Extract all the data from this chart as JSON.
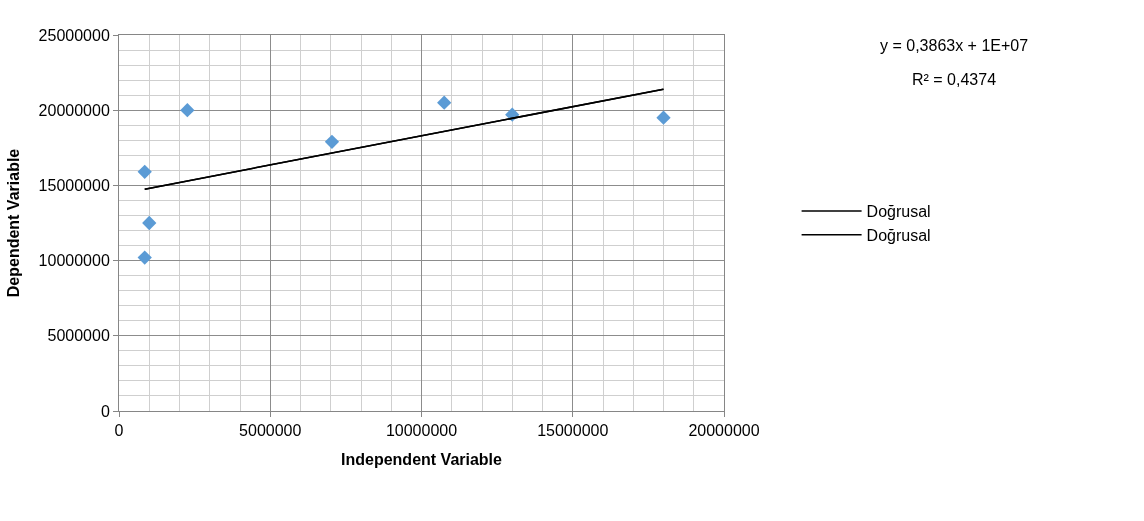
{
  "chart_data": {
    "type": "scatter",
    "xlabel": "Independent Variable",
    "ylabel": "Dependent Variable",
    "annotations": [
      "y = 0,3863x + 1E+07",
      "R² = 0,4374"
    ],
    "series": [
      {
        "color": "#5b9bd5",
        "marker": "diamond",
        "x": [
          850000,
          1000000,
          850000,
          2260000,
          7040000,
          10750000,
          13000000,
          18000000
        ],
        "values": [
          15900000,
          12500000,
          10200000,
          20000000,
          17900000,
          20500000,
          19700000,
          19500000
        ]
      },
      {
        "type": "line",
        "name": "Doğrusal",
        "color": "#000000",
        "x": [
          850000,
          18000000
        ],
        "values": [
          14750000,
          21400000
        ]
      },
      {
        "type": "line",
        "name": "Doğrusal",
        "color": "#000000",
        "x": [
          850000,
          18000000
        ],
        "values": [
          14750000,
          21400000
        ]
      }
    ],
    "xlim": [
      0,
      20000000
    ],
    "xticks": [
      0,
      5000000,
      10000000,
      15000000,
      20000000
    ],
    "ylim": [
      0,
      25000000
    ],
    "yticks": [
      0,
      5000000,
      10000000,
      15000000,
      20000000,
      25000000
    ],
    "grid": true,
    "legend": "right"
  }
}
